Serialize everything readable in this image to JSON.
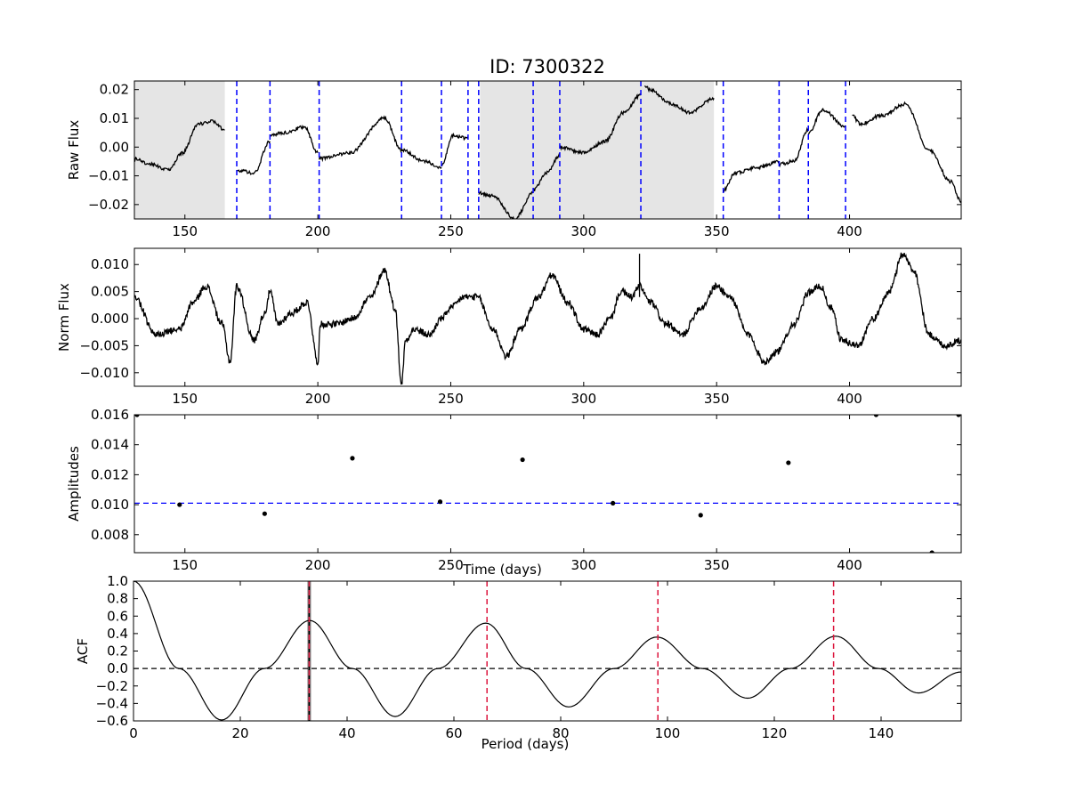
{
  "title": "ID: 7300322",
  "colors": {
    "trace": "#000000",
    "vline": "#0000ff",
    "period_line": "#dc143c",
    "shade": "#e5e5e5",
    "zero": "#000000"
  },
  "chart_data": [
    {
      "id": "raw",
      "type": "line",
      "ylabel": "Raw Flux",
      "xlim": [
        131,
        442
      ],
      "ylim": [
        -0.025,
        0.023
      ],
      "xticks": [
        150,
        200,
        250,
        300,
        350,
        400
      ],
      "xtick_labels": [
        "150",
        "200",
        "250",
        "300",
        "350",
        "400"
      ],
      "yticks": [
        -0.02,
        -0.01,
        0.0,
        0.01,
        0.02
      ],
      "ytick_labels": [
        "−0.02",
        "−0.01",
        "0.00",
        "0.01",
        "0.02"
      ],
      "shaded_x_ranges": [
        [
          131,
          165
        ],
        [
          261,
          349
        ]
      ],
      "vlines_x": [
        169.5,
        182,
        200.5,
        231.5,
        246.5,
        256.5,
        260.5,
        281,
        291,
        321.5,
        352.5,
        373.5,
        384.5,
        398.5
      ],
      "segments": [
        {
          "x": [
            131,
            137,
            144,
            149,
            155,
            160,
            165
          ],
          "y": [
            -0.004,
            -0.006,
            -0.008,
            -0.002,
            0.008,
            0.009,
            0.006
          ]
        },
        {
          "x": [
            169.5,
            176,
            182
          ],
          "y": [
            -0.008,
            -0.009,
            0.002
          ]
        },
        {
          "x": [
            182,
            187,
            195,
            200
          ],
          "y": [
            0.004,
            0.005,
            0.007,
            -0.002
          ]
        },
        {
          "x": [
            200.5,
            212,
            225,
            231.5
          ],
          "y": [
            -0.004,
            -0.002,
            0.01,
            -0.001
          ]
        },
        {
          "x": [
            231.5,
            240,
            246.5
          ],
          "y": [
            -0.001,
            -0.005,
            -0.007
          ]
        },
        {
          "x": [
            246.5,
            251,
            256.5
          ],
          "y": [
            -0.006,
            0.004,
            0.003
          ]
        },
        {
          "x": [
            260.5,
            266,
            274,
            281
          ],
          "y": [
            -0.016,
            -0.017,
            -0.025,
            -0.016
          ]
        },
        {
          "x": [
            281,
            286,
            291
          ],
          "y": [
            -0.015,
            -0.009,
            -0.003
          ]
        },
        {
          "x": [
            291,
            300,
            308,
            315,
            321.5
          ],
          "y": [
            0.0,
            -0.002,
            0.002,
            0.012,
            0.018
          ]
        },
        {
          "x": [
            323,
            325,
            333,
            340,
            349
          ],
          "y": [
            0.021,
            0.02,
            0.015,
            0.012,
            0.017
          ]
        },
        {
          "x": [
            352.5,
            357,
            366,
            373.5
          ],
          "y": [
            -0.015,
            -0.009,
            -0.007,
            -0.005
          ]
        },
        {
          "x": [
            373.5,
            379,
            384.5
          ],
          "y": [
            -0.006,
            -0.005,
            0.006
          ]
        },
        {
          "x": [
            384.5,
            390,
            398.5
          ],
          "y": [
            0.005,
            0.013,
            0.007
          ]
        },
        {
          "x": [
            401,
            404,
            412,
            421,
            430,
            438,
            442
          ],
          "y": [
            0.011,
            0.008,
            0.011,
            0.015,
            -0.001,
            -0.012,
            -0.019
          ]
        }
      ]
    },
    {
      "id": "norm",
      "type": "line",
      "ylabel": "Norm Flux",
      "xlim": [
        131,
        442
      ],
      "ylim": [
        -0.0125,
        0.013
      ],
      "xticks": [
        150,
        200,
        250,
        300,
        350,
        400
      ],
      "xtick_labels": [
        "150",
        "200",
        "250",
        "300",
        "350",
        "400"
      ],
      "yticks": [
        -0.01,
        -0.005,
        0.0,
        0.005,
        0.01
      ],
      "ytick_labels": [
        "−0.010",
        "−0.005",
        "0.000",
        "0.005",
        "0.010"
      ],
      "x": [
        131,
        139,
        148,
        153,
        158,
        164,
        167,
        169.5,
        176,
        180,
        182,
        185,
        190,
        196,
        200,
        201,
        207,
        213,
        220,
        225,
        229,
        231.5,
        233,
        236,
        242,
        246.5,
        250,
        255,
        260,
        266,
        271,
        276,
        283,
        288,
        294,
        300,
        305,
        310,
        314,
        318,
        321,
        325,
        331,
        337,
        344,
        350,
        355,
        362,
        368,
        373,
        379,
        385,
        389,
        393,
        397,
        403,
        409,
        415,
        420,
        424,
        430,
        436,
        442
      ],
      "y": [
        0.004,
        -0.003,
        -0.002,
        0.003,
        0.006,
        -0.001,
        -0.008,
        0.006,
        -0.004,
        0.001,
        0.005,
        -0.001,
        0.001,
        0.003,
        -0.008,
        -0.001,
        -0.001,
        0.0,
        0.004,
        0.009,
        0.002,
        -0.012,
        -0.004,
        -0.002,
        -0.003,
        0.0,
        0.002,
        0.004,
        0.004,
        -0.002,
        -0.007,
        -0.002,
        0.004,
        0.008,
        0.003,
        -0.002,
        -0.003,
        0.0,
        0.005,
        0.004,
        0.006,
        0.003,
        -0.001,
        -0.003,
        0.002,
        0.006,
        0.004,
        -0.003,
        -0.008,
        -0.006,
        -0.001,
        0.005,
        0.006,
        0.002,
        -0.004,
        -0.005,
        0.0,
        0.005,
        0.012,
        0.009,
        -0.003,
        -0.005,
        -0.004
      ],
      "spike": {
        "x": 321,
        "y": 0.012
      }
    },
    {
      "id": "amp",
      "type": "scatter",
      "ylabel": "Amplitudes",
      "xlabel": "Time (days)",
      "xlim": [
        131,
        442
      ],
      "ylim": [
        0.0068,
        0.016
      ],
      "xticks": [
        150,
        200,
        250,
        300,
        350,
        400
      ],
      "xtick_labels": [
        "150",
        "200",
        "250",
        "300",
        "350",
        "400"
      ],
      "yticks": [
        0.008,
        0.01,
        0.012,
        0.014,
        0.016
      ],
      "ytick_labels": [
        "0.008",
        "0.010",
        "0.012",
        "0.014",
        "0.016"
      ],
      "hline_y": 0.0101,
      "points": [
        {
          "x": 148,
          "y": 0.01
        },
        {
          "x": 180,
          "y": 0.0094
        },
        {
          "x": 213,
          "y": 0.0131
        },
        {
          "x": 246,
          "y": 0.0102
        },
        {
          "x": 277,
          "y": 0.013
        },
        {
          "x": 311,
          "y": 0.0101
        },
        {
          "x": 344,
          "y": 0.0093
        },
        {
          "x": 377,
          "y": 0.0128
        },
        {
          "x": 410,
          "y": 0.016
        },
        {
          "x": 132,
          "y": 0.016
        },
        {
          "x": 441,
          "y": 0.016
        },
        {
          "x": 431,
          "y": 0.0068
        }
      ]
    },
    {
      "id": "acf",
      "type": "line",
      "ylabel": "ACF",
      "xlabel": "Period (days)",
      "xlim": [
        0,
        155
      ],
      "ylim": [
        -0.6,
        1.0
      ],
      "xticks": [
        0,
        20,
        40,
        60,
        80,
        100,
        120,
        140
      ],
      "xtick_labels": [
        "0",
        "20",
        "40",
        "60",
        "80",
        "100",
        "120",
        "140"
      ],
      "yticks": [
        -0.6,
        -0.4,
        -0.2,
        0.0,
        0.2,
        0.4,
        0.6,
        0.8,
        1.0
      ],
      "ytick_labels": [
        "−0.6",
        "−0.4",
        "−0.2",
        "0.0",
        "0.2",
        "0.4",
        "0.6",
        "0.8",
        "1.0"
      ],
      "hline_y": 0.0,
      "period_band": [
        32.5,
        33.3
      ],
      "period": 32.9,
      "harmonics_x": [
        66.2,
        98.2,
        131.1
      ],
      "x": [
        0,
        8.5,
        16.5,
        24.5,
        33,
        41,
        49,
        57,
        66,
        73.5,
        81.5,
        90,
        98,
        106.5,
        115,
        123,
        131.5,
        139.5,
        147,
        155
      ],
      "y": [
        1.0,
        0.0,
        -0.59,
        0.0,
        0.55,
        0.0,
        -0.55,
        0.0,
        0.52,
        0.0,
        -0.44,
        0.0,
        0.36,
        0.0,
        -0.34,
        0.0,
        0.37,
        0.0,
        -0.28,
        -0.04
      ]
    }
  ]
}
